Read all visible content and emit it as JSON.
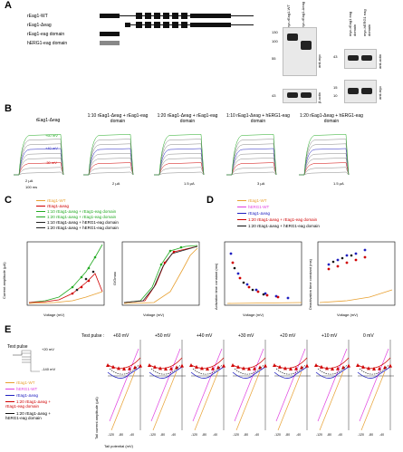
{
  "panels": {
    "A": "A",
    "B": "B",
    "C": "C",
    "D": "D",
    "E": "E"
  },
  "panel_a": {
    "constructs": [
      "rEag1-WT",
      "rEag1-Δeag",
      "rEag1-eag domain",
      "hERG1-eag domain"
    ],
    "blot1_lanes": [
      "myc-rEag1-WT",
      "myc-rEag1-Δeag"
    ],
    "blot2_lanes": [
      "myc-rEag1 eag domain",
      "myc-hERG1 eag domain"
    ],
    "mw_left": [
      "130",
      "100",
      "55",
      "43"
    ],
    "mw_right": [
      "43",
      "15",
      "10"
    ],
    "antibody1": "anti-myc",
    "antibody2": "β-actin",
    "antibody3": "anti-myc",
    "antibody4": "anti-actin"
  },
  "panel_b": {
    "titles": [
      "rEag1-Δeag",
      "1:10 rEag1-Δeag + rEag1-eag domain",
      "1:20 rEag1-Δeag + rEag1-eag domain",
      "1:10 rEag1-Δeag + hERG1-eag domain",
      "1:20 rEag1-Δeag + hERG1-eag domain"
    ],
    "voltages": [
      "+60 mV",
      "+40 mV",
      "-30 mV"
    ],
    "scales": [
      "2 μA",
      "2 μA",
      "1.5 μA",
      "3 μA",
      "1.5 μA"
    ],
    "time_scale": "100 ms"
  },
  "panel_c": {
    "legend": [
      {
        "label": "rEag1-WT",
        "color": "#e8a030"
      },
      {
        "label": "rEag1-Δeag",
        "color": "#d00000"
      },
      {
        "label": "1:10 rEag1-Δeag + rEag1-eag domain",
        "color": "#22aa22"
      },
      {
        "label": "1:20 rEag1-Δeag + rEag1-eag domain",
        "color": "#22aa22"
      },
      {
        "label": "1:10 rEag1-Δeag + hERG1-eag domain",
        "color": "#222222"
      },
      {
        "label": "1:20 rEag1-Δeag + hERG1-eag domain",
        "color": "#222222"
      }
    ],
    "ylabel_left": "Current amplitude (μA)",
    "xlabel": "Voltage (mV)",
    "ylabel_right": "G/Gmax"
  },
  "panel_d": {
    "legend": [
      {
        "label": "rEag1-WT",
        "color": "#e8a030"
      },
      {
        "label": "hERG1-WT",
        "color": "#e040e0"
      },
      {
        "label": "rEag1-Δeag",
        "color": "#2020c0"
      },
      {
        "label": "1:20 rEag1-Δeag + rEag1-eag domain",
        "color": "#d00000"
      },
      {
        "label": "1:20 rEag1-Δeag + hERG1-eag domain",
        "color": "#111111"
      }
    ],
    "ylabel_left": "Activation time constant (ms)",
    "ylabel_right": "Deactivation time constant (ms)",
    "xlabel": "Voltage (mV)"
  },
  "panel_e": {
    "test_pulse_label": "Test pulse",
    "test_pulse_values": [
      "+20 mV",
      "-140 mV"
    ],
    "test_pulse_header": "Test pulse :",
    "columns": [
      "+60 mV",
      "+50 mV",
      "+40 mV",
      "+30 mV",
      "+20 mV",
      "+10 mV",
      "0 mV"
    ],
    "legend": [
      {
        "label": "rEag1-WT",
        "color": "#e8a030"
      },
      {
        "label": "hERG1-WT",
        "color": "#e040e0"
      },
      {
        "label": "rEag1-Δeag",
        "color": "#2020c0"
      },
      {
        "label": "1:20 rEag1-Δeag + rEag1-eag domain",
        "color": "#d00000"
      },
      {
        "label": "1:20 rEag1-Δeag + hERG1-eag domain",
        "color": "#111111"
      }
    ],
    "ylabel": "Tail current amplitude (μA)",
    "xlabel": "Tail potential (mV)",
    "xticks": [
      "-120",
      "-80",
      "-40"
    ]
  }
}
